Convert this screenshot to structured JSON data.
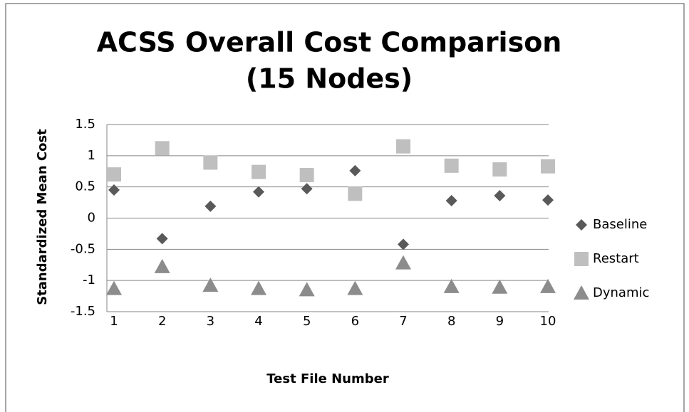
{
  "chart_data": {
    "type": "scatter",
    "title": [
      "ACSS Overall Cost Comparison",
      "(15 Nodes)"
    ],
    "x_label": "Test File Number",
    "y_label": "Standardized Mean Cost",
    "categories": [
      "1",
      "2",
      "3",
      "4",
      "5",
      "6",
      "7",
      "8",
      "9",
      "10"
    ],
    "series": [
      {
        "name": "Baseline",
        "color": "#595959",
        "marker": "diamond",
        "values": [
          0.45,
          -0.33,
          0.19,
          0.42,
          0.47,
          0.76,
          -0.42,
          0.28,
          0.36,
          0.29
        ]
      },
      {
        "name": "Restart",
        "color": "#bfbfbf",
        "marker": "square",
        "values": [
          0.7,
          1.12,
          0.89,
          0.74,
          0.69,
          0.39,
          1.15,
          0.84,
          0.78,
          0.83
        ]
      },
      {
        "name": "Dynamic",
        "color": "#8c8c8c",
        "marker": "triangle",
        "values": [
          -1.13,
          -0.78,
          -1.08,
          -1.13,
          -1.15,
          -1.13,
          -0.72,
          -1.1,
          -1.11,
          -1.1
        ]
      }
    ],
    "ylim": [
      -1.5,
      1.5
    ],
    "yticks": [
      1.5,
      1,
      0.5,
      0,
      -0.5,
      -1,
      -1.5
    ],
    "grid": true,
    "legend": "right"
  }
}
